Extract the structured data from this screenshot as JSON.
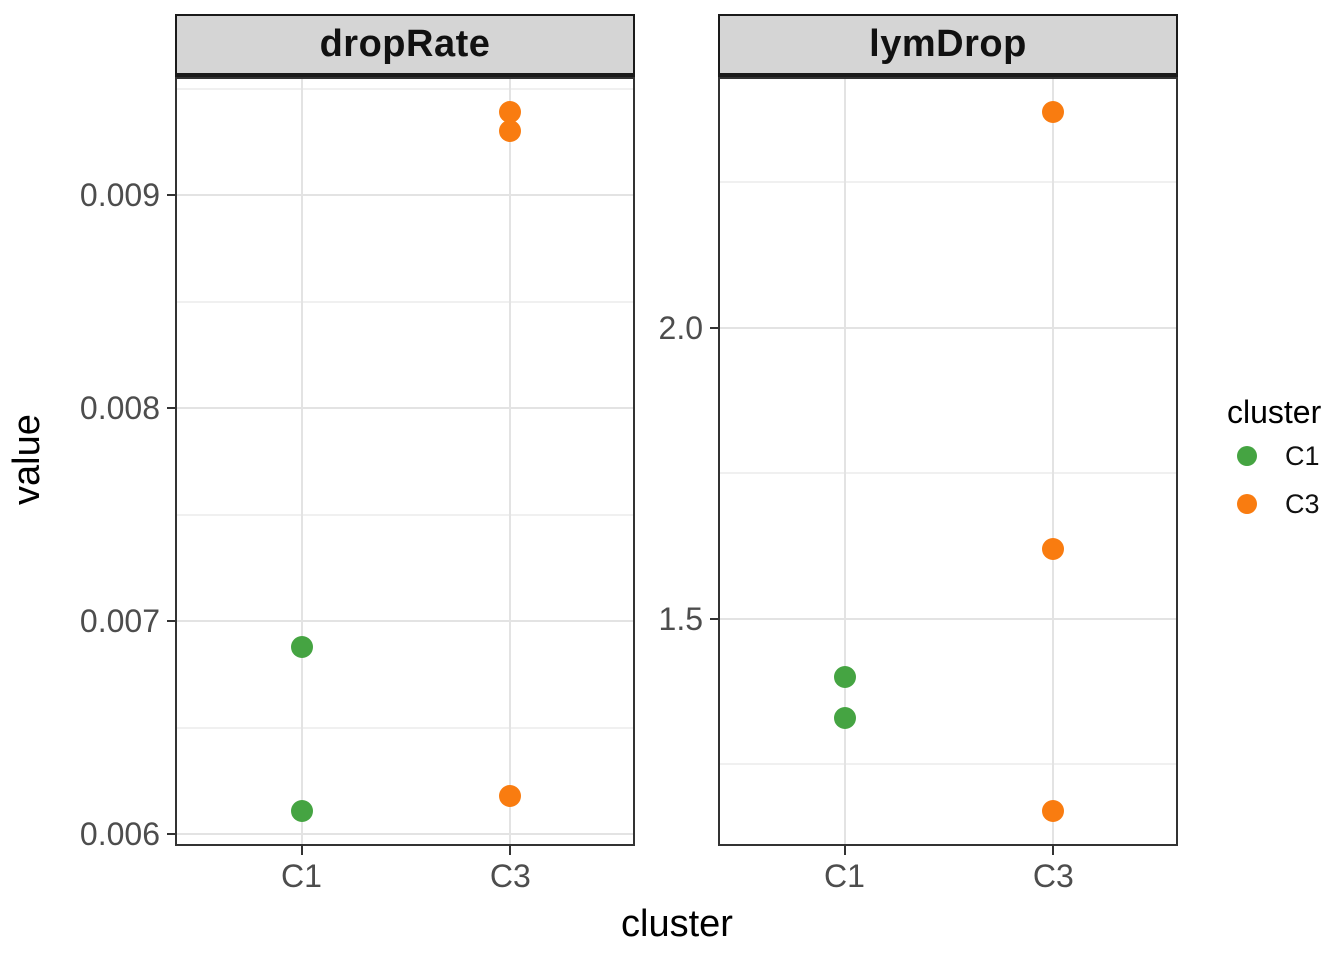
{
  "chart_data": {
    "type": "scatter",
    "title": "",
    "xlabel": "cluster",
    "ylabel": "value",
    "categories": [
      "C1",
      "C3"
    ],
    "facet_variable_values": [
      "dropRate",
      "lymDrop"
    ],
    "layout_hints": {
      "faceting": "two panels side-by-side, free y scales",
      "grid": "on",
      "legend_position": "right"
    },
    "facets": [
      {
        "label": "dropRate",
        "ylim": [
          0.005946,
          0.009554
        ],
        "yticks_major": [
          {
            "value": 0.009,
            "label": "0.009"
          },
          {
            "value": 0.008,
            "label": "0.008"
          },
          {
            "value": 0.007,
            "label": "0.007"
          },
          {
            "value": 0.006,
            "label": "0.006"
          }
        ],
        "yticks_minor": [
          0.0095,
          0.0085,
          0.0075,
          0.0065
        ],
        "points": [
          {
            "cluster": "C1",
            "value": 0.00688
          },
          {
            "cluster": "C1",
            "value": 0.00611
          },
          {
            "cluster": "C3",
            "value": 0.00939
          },
          {
            "cluster": "C3",
            "value": 0.0093
          },
          {
            "cluster": "C3",
            "value": 0.00618
          }
        ]
      },
      {
        "label": "lymDrop",
        "ylim": [
          1.11,
          2.43
        ],
        "yticks_major": [
          {
            "value": 2.0,
            "label": "2.0"
          },
          {
            "value": 1.5,
            "label": "1.5"
          }
        ],
        "yticks_minor": [
          2.25,
          1.75,
          1.25
        ],
        "points": [
          {
            "cluster": "C1",
            "value": 1.4
          },
          {
            "cluster": "C1",
            "value": 1.33
          },
          {
            "cluster": "C3",
            "value": 2.37
          },
          {
            "cluster": "C3",
            "value": 1.62
          },
          {
            "cluster": "C3",
            "value": 1.17
          }
        ]
      }
    ],
    "legend": {
      "title": "cluster",
      "items": [
        {
          "label": "C1",
          "color": "#45A442"
        },
        {
          "label": "C3",
          "color": "#F97C10"
        }
      ]
    },
    "colors": {
      "C1": "#45A442",
      "C3": "#F97C10"
    },
    "style": {
      "strip_bg": "#D5D5D5",
      "strip_border": "#1A1A1A",
      "panel_border": "#333333",
      "grid_major": "#E3E3E3",
      "grid_minor": "#F0F0F0",
      "axis_text": "#4D4D4D",
      "title_text": "#000000"
    }
  }
}
